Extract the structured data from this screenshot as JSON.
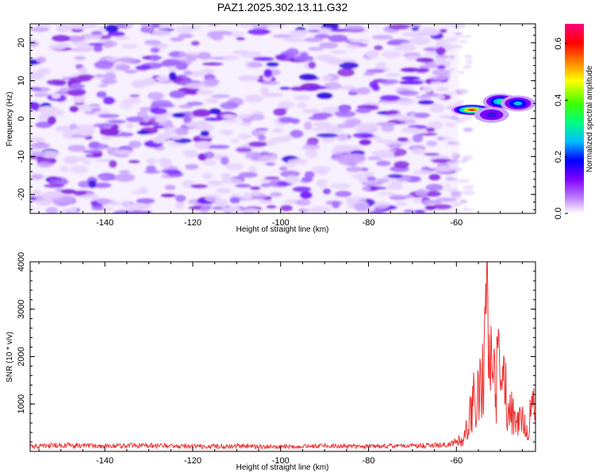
{
  "chart_data": [
    {
      "type": "heatmap",
      "title": "PAZ1.2025.302.13.11.G32",
      "xlabel": "Height of straight line (km)",
      "ylabel": "Frequency (Hz)",
      "xlim": [
        -157,
        -42
      ],
      "ylim": [
        -25,
        25
      ],
      "xticks": [
        -140,
        -120,
        -100,
        -80,
        -60
      ],
      "yticks": [
        -20,
        -10,
        0,
        10,
        20
      ],
      "colorbar": {
        "label": "Normalized spectral amplitude",
        "range": [
          0,
          0.67
        ],
        "ticks": [
          0.0,
          0.2,
          0.4,
          0.6
        ],
        "tick_labels": [
          "0.0",
          "0.2",
          "0.4",
          "0.6"
        ],
        "colors": [
          "#ffffff",
          "#c080ff",
          "#8000ff",
          "#0000ff",
          "#00c0ff",
          "#00ff80",
          "#40ff00",
          "#ffff00",
          "#ff8000",
          "#ff0000",
          "#ff0080"
        ]
      },
      "features": [
        {
          "x": -56.5,
          "y": 2.3,
          "amplitude": 0.63
        },
        {
          "x": -50,
          "y": 4.5,
          "amplitude": 0.35
        },
        {
          "x": -46,
          "y": 4.0,
          "amplitude": 0.3
        },
        {
          "x": -52,
          "y": 1.0,
          "amplitude": 0.18
        }
      ]
    },
    {
      "type": "line",
      "title": "",
      "xlabel": "Height of straight line (km)",
      "ylabel": "SNR (10 * v/v)",
      "xlim": [
        -157,
        -42
      ],
      "ylim": [
        0,
        4000
      ],
      "xticks": [
        -140,
        -120,
        -100,
        -80,
        -60
      ],
      "yticks": [
        1000,
        2000,
        3000,
        4000
      ],
      "series": [
        {
          "name": "SNR",
          "color": "#ee3333",
          "x": [
            -157,
            -150,
            -140,
            -130,
            -120,
            -110,
            -100,
            -90,
            -80,
            -70,
            -62,
            -60,
            -58,
            -57,
            -56,
            -55,
            -54.5,
            -54,
            -53.5,
            -53,
            -52.5,
            -52,
            -51.5,
            -51,
            -50.5,
            -50,
            -49.5,
            -49,
            -48.5,
            -48,
            -47,
            -46,
            -45,
            -44,
            -43,
            -42
          ],
          "y": [
            100,
            130,
            110,
            120,
            100,
            105,
            95,
            110,
            100,
            115,
            130,
            200,
            350,
            800,
            1300,
            1600,
            1400,
            1900,
            2500,
            4000,
            1900,
            2200,
            2100,
            1600,
            2000,
            1500,
            1800,
            1400,
            1300,
            900,
            1000,
            700,
            800,
            600,
            800,
            1200
          ]
        }
      ]
    }
  ]
}
